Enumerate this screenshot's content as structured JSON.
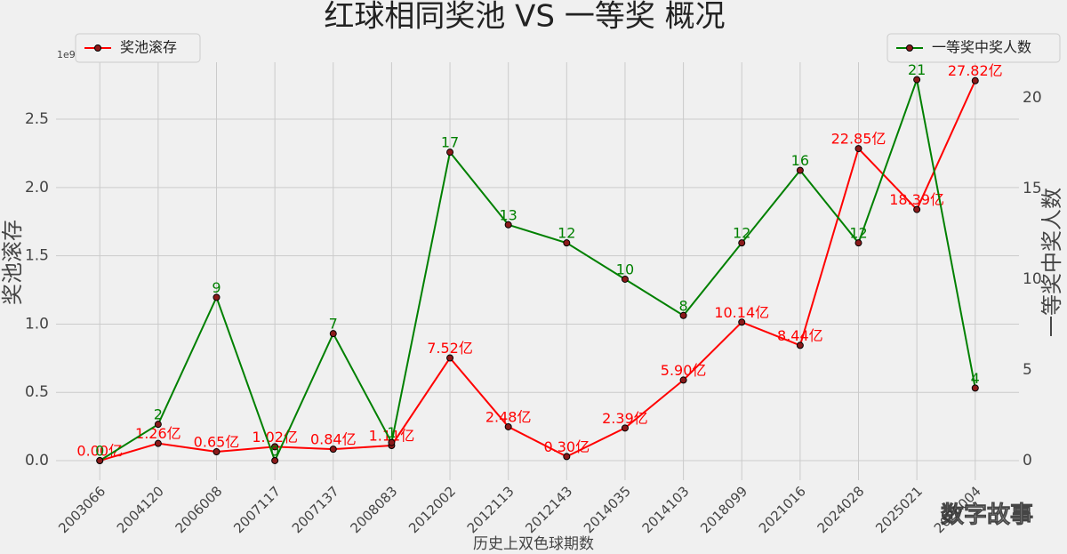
{
  "chart_data": {
    "type": "line",
    "title": "红球相同奖池 VS 一等奖 概况",
    "x_label": "历史上双色球期数",
    "y_label": "奖池滚存",
    "y2_label": "一等奖中奖人数",
    "y_offset_label": "1e9",
    "watermark": "数字故事",
    "categories": [
      "2003066",
      "2004120",
      "2006008",
      "2007117",
      "2007137",
      "2008083",
      "2012002",
      "2012113",
      "2012143",
      "2014035",
      "2014103",
      "2018099",
      "2021016",
      "2024028",
      "2025021",
      "2026004"
    ],
    "series": [
      {
        "name": "奖池滚存",
        "color": "#ff0000",
        "marker_color": "#8b1a1a",
        "axis": "y",
        "legend": "upper left",
        "values": [
          0.0,
          0.126,
          0.065,
          0.102,
          0.084,
          0.111,
          0.752,
          0.248,
          0.03,
          0.239,
          0.59,
          1.014,
          0.844,
          2.285,
          1.839,
          2.782
        ],
        "value_labels": [
          "0.00亿",
          "1.26亿",
          "0.65亿",
          "1.02亿",
          "0.84亿",
          "1.11亿",
          "7.52亿",
          "2.48亿",
          "0.30亿",
          "2.39亿",
          "5.90亿",
          "10.14亿",
          "8.44亿",
          "22.85亿",
          "18.39亿",
          "27.82亿"
        ]
      },
      {
        "name": "一等奖中奖人数",
        "color": "#008000",
        "marker_color": "#8b1a1a",
        "axis": "y2",
        "legend": "upper right",
        "values": [
          0,
          2,
          9,
          0,
          7,
          1,
          17,
          13,
          12,
          10,
          8,
          12,
          16,
          12,
          21,
          4
        ]
      }
    ],
    "ylim": [
      -0.143,
      2.917
    ],
    "yticks": [
      {
        "value": 0,
        "label": "0.0"
      },
      0.5,
      {
        "value": 1,
        "label": "1.0"
      },
      1.5,
      {
        "value": 2,
        "label": "2.0"
      },
      2.5
    ],
    "y2lim": [
      -1.08,
      21.96
    ],
    "y2ticks": [
      0,
      5,
      10,
      15,
      20
    ],
    "grid": true
  }
}
